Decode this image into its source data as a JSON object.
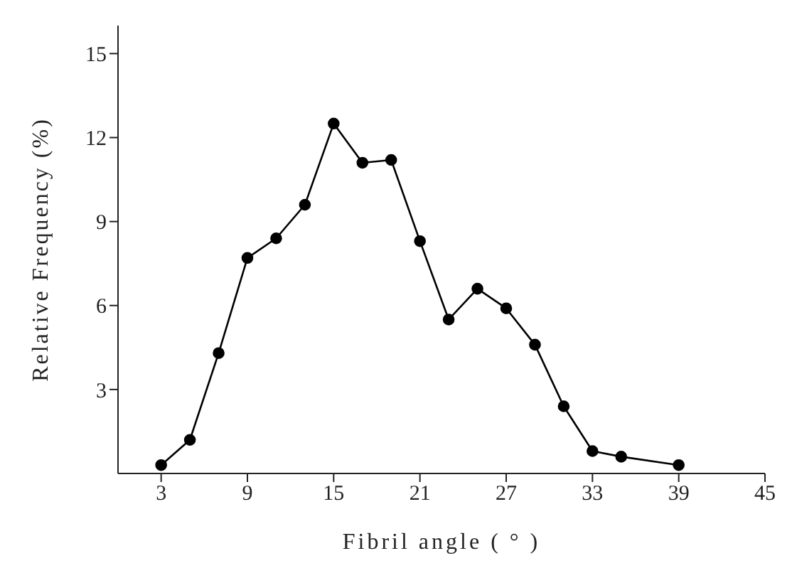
{
  "chart_data": {
    "type": "line",
    "xlabel": "Fibril angle ( ° )",
    "ylabel": "Relative Frequency (%)",
    "x": [
      3,
      5,
      7,
      9,
      11,
      13,
      15,
      17,
      19,
      21,
      23,
      25,
      27,
      29,
      31,
      33,
      35,
      39
    ],
    "series": [
      {
        "color": "#000000",
        "values": [
          0.3,
          1.2,
          4.3,
          7.7,
          8.4,
          9.6,
          12.5,
          11.1,
          11.2,
          8.3,
          5.5,
          6.6,
          5.9,
          4.6,
          2.4,
          0.8,
          0.6,
          0.3
        ]
      }
    ],
    "xlim": [
      0,
      45
    ],
    "xticks": [
      3,
      9,
      15,
      21,
      27,
      33,
      39,
      45
    ],
    "ylim": [
      0,
      16
    ],
    "yticks": [
      3,
      6,
      9,
      12,
      15
    ],
    "grid": false,
    "legend": false,
    "marker": "circle",
    "line_style": "solid"
  }
}
